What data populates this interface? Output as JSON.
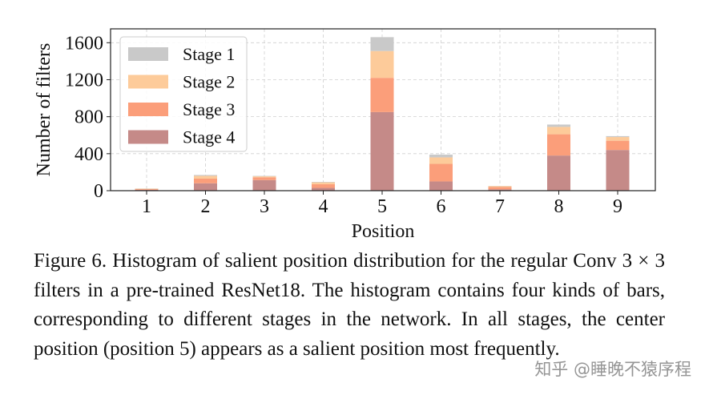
{
  "chart_data": {
    "type": "bar",
    "stacked": true,
    "categories": [
      "1",
      "2",
      "3",
      "4",
      "5",
      "6",
      "7",
      "8",
      "9"
    ],
    "series": [
      {
        "name": "Stage 4",
        "color": "#c58a88",
        "values": [
          10,
          80,
          115,
          30,
          850,
          100,
          15,
          380,
          440
        ]
      },
      {
        "name": "Stage 3",
        "color": "#fb9e7a",
        "values": [
          8,
          50,
          30,
          40,
          370,
          190,
          25,
          230,
          100
        ]
      },
      {
        "name": "Stage 2",
        "color": "#fdcb9a",
        "values": [
          4,
          30,
          10,
          20,
          290,
          70,
          10,
          80,
          40
        ]
      },
      {
        "name": "Stage 1",
        "color": "#c9c9c9",
        "values": [
          2,
          10,
          5,
          5,
          150,
          30,
          2,
          25,
          10
        ]
      }
    ],
    "xlabel": "Position",
    "ylabel": "Number of filters",
    "yticks": [
      0,
      400,
      800,
      1200,
      1600
    ],
    "ylim": [
      0,
      1750
    ],
    "grid": true,
    "legend_position": "top-left",
    "legend_order": [
      "Stage 1",
      "Stage 2",
      "Stage 3",
      "Stage 4"
    ]
  },
  "caption": "Figure 6. Histogram of salient position distribution for the regular Conv 3 × 3 filters in a pre-trained ResNet18. The histogram contains four kinds of bars, corresponding to different stages in the network. In all stages, the center position (position 5) appears as a salient position most frequently.",
  "watermark": "知乎 @睡晚不猿序程"
}
